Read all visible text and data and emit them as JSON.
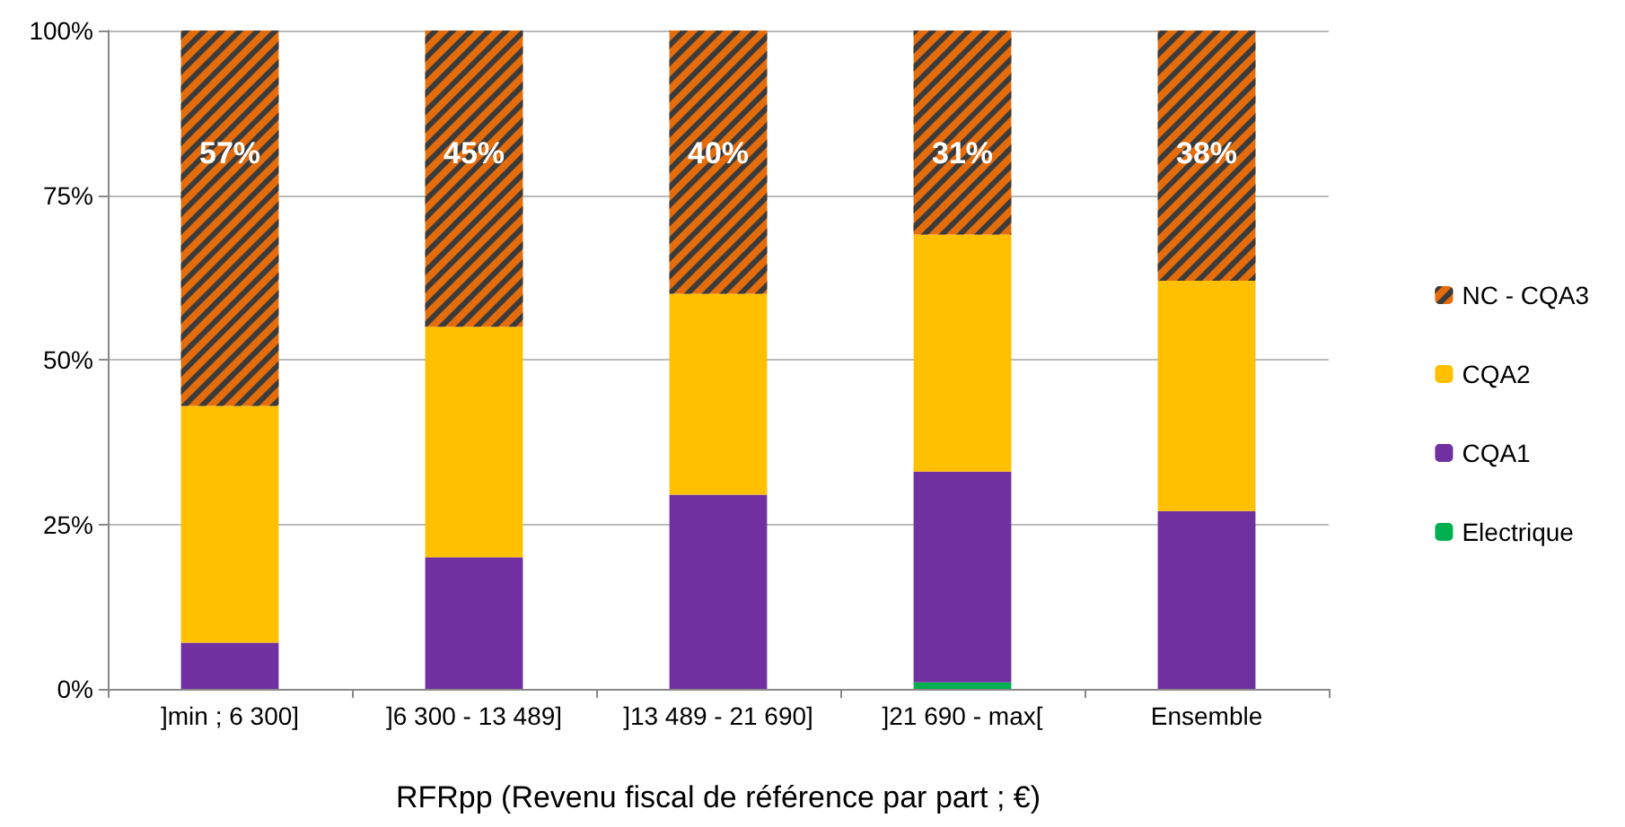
{
  "chart_data": {
    "type": "bar",
    "stacked": true,
    "xlabel": "RFRpp (Revenu fiscal de référence par part ; €)",
    "categories": [
      "]min ; 6 300]",
      "]6 300 - 13 489]",
      "]13 489 - 21 690]",
      "]21 690 - max[",
      "Ensemble"
    ],
    "series": [
      {
        "name": "Electrique",
        "color": "#00b050",
        "values": [
          0,
          0,
          0,
          1,
          0
        ]
      },
      {
        "name": "CQA1",
        "color": "#7030a0",
        "values": [
          7,
          20,
          29.5,
          32,
          27
        ]
      },
      {
        "name": "CQA2",
        "color": "#ffc000",
        "values": [
          36,
          35,
          30.5,
          36,
          35
        ]
      },
      {
        "name": "NC - CQA3",
        "color": "#e46c0a",
        "values": [
          57,
          45,
          40,
          31,
          38
        ],
        "value_labels": [
          "57%",
          "45%",
          "40%",
          "31%",
          "38%"
        ]
      }
    ],
    "ylim": [
      0,
      100
    ],
    "yticks": [
      {
        "value": 0,
        "label": "0%"
      },
      {
        "value": 25,
        "label": "25%"
      },
      {
        "value": 50,
        "label": "50%"
      },
      {
        "value": 75,
        "label": "75%"
      },
      {
        "value": 100,
        "label": "100%"
      }
    ],
    "grid": "y",
    "legend": "right"
  }
}
